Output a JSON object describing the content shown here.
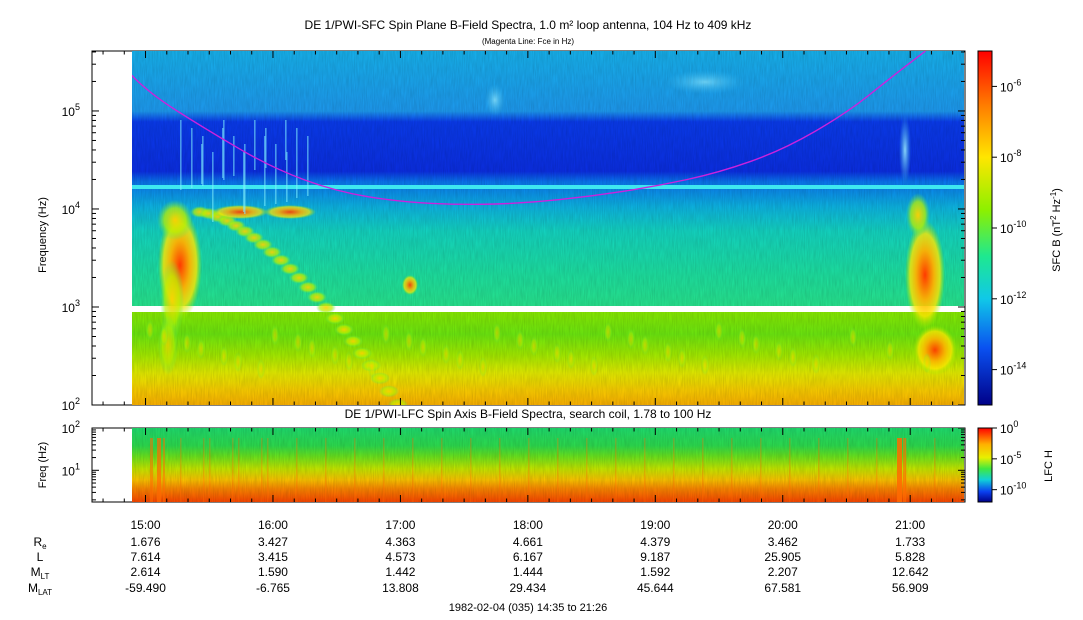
{
  "chart_data": [
    {
      "type": "heatmap",
      "panel": "SFC",
      "title": "DE 1/PWI-SFC  Spin Plane B-Field Spectra, 1.0 m² loop antenna, 104 Hz to 409 kHz",
      "subtitle": "(Magenta Line: Fce in Hz)",
      "ylabel": "Frequency (Hz)",
      "yscale": "log",
      "ylim": [
        100,
        409000
      ],
      "yticks": [
        {
          "value": 100,
          "label_base": "10",
          "label_exp": "2"
        },
        {
          "value": 1000,
          "label_base": "10",
          "label_exp": "3"
        },
        {
          "value": 10000,
          "label_base": "10",
          "label_exp": "4"
        },
        {
          "value": 100000,
          "label_base": "10",
          "label_exp": "5"
        }
      ],
      "colorbar": {
        "label": "SFC B (nT",
        "label_exp1": "2",
        "label_mid": " Hz",
        "label_exp2": "-1",
        "label_end": ")",
        "scale": "log",
        "range": [
          1e-15,
          1e-05
        ],
        "ticks": [
          {
            "value": 1e-06,
            "label_base": "10",
            "label_exp": "-6"
          },
          {
            "value": 1e-08,
            "label_base": "10",
            "label_exp": "-8"
          },
          {
            "value": 1e-10,
            "label_base": "10",
            "label_exp": "-10"
          },
          {
            "value": 1e-12,
            "label_base": "10",
            "label_exp": "-12"
          },
          {
            "value": 1e-14,
            "label_base": "10",
            "label_exp": "-14"
          }
        ]
      },
      "fce_curve": {
        "color": "#cc22dd",
        "x_hours": [
          14.72,
          15.0,
          15.5,
          16.0,
          16.5,
          17.0,
          17.5,
          18.0,
          18.5,
          19.0,
          19.5,
          20.0,
          20.5,
          20.85,
          21.12
        ],
        "freq_hz": [
          409000,
          160000,
          62000,
          26000,
          15000,
          11800,
          11000,
          11500,
          13500,
          17000,
          23500,
          40000,
          95000,
          220000,
          409000
        ]
      }
    },
    {
      "type": "heatmap",
      "panel": "LFC",
      "title": "DE 1/PWI-LFC  Spin Axis B-Field Spectra, search coil, 1.78 to 100 Hz",
      "ylabel": "Freq (Hz)",
      "yscale": "log",
      "ylim": [
        1.78,
        100
      ],
      "yticks": [
        {
          "value": 10,
          "label_base": "10",
          "label_exp": "1"
        },
        {
          "value": 100,
          "label_base": "10",
          "label_exp": "2"
        }
      ],
      "colorbar": {
        "label": "LFC H",
        "scale": "log",
        "range": [
          1e-12,
          1
        ],
        "ticks": [
          {
            "value": 1,
            "label_base": "10",
            "label_exp": "0"
          },
          {
            "value": 1e-05,
            "label_base": "10",
            "label_exp": "-5"
          },
          {
            "value": 1e-10,
            "label_base": "10",
            "label_exp": "-10"
          }
        ]
      }
    }
  ],
  "time_axis": {
    "range_hours": [
      14.58,
      21.43
    ],
    "data_start_hours": 14.9,
    "ticks": [
      {
        "hour": 15,
        "label": "15:00"
      },
      {
        "hour": 16,
        "label": "16:00"
      },
      {
        "hour": 17,
        "label": "17:00"
      },
      {
        "hour": 18,
        "label": "18:00"
      },
      {
        "hour": 19,
        "label": "19:00"
      },
      {
        "hour": 20,
        "label": "20:00"
      },
      {
        "hour": 21,
        "label": "21:00"
      }
    ],
    "ephemeris": [
      {
        "label": "R",
        "sub": "e",
        "values": [
          "1.676",
          "3.427",
          "4.363",
          "4.661",
          "4.379",
          "3.462",
          "1.733"
        ]
      },
      {
        "label": "L",
        "sub": "",
        "values": [
          "7.614",
          "3.415",
          "4.573",
          "6.167",
          "9.187",
          "25.905",
          "5.828"
        ]
      },
      {
        "label": "M",
        "sub": "LT",
        "values": [
          "2.614",
          "1.590",
          "1.442",
          "1.444",
          "1.592",
          "2.207",
          "12.642"
        ]
      },
      {
        "label": "M",
        "sub": "LAT",
        "values": [
          "-59.490",
          "-6.765",
          "13.808",
          "29.434",
          "45.644",
          "67.581",
          "56.909"
        ]
      }
    ],
    "footer": "1982-02-04 (035) 14:35 to 21:26"
  }
}
